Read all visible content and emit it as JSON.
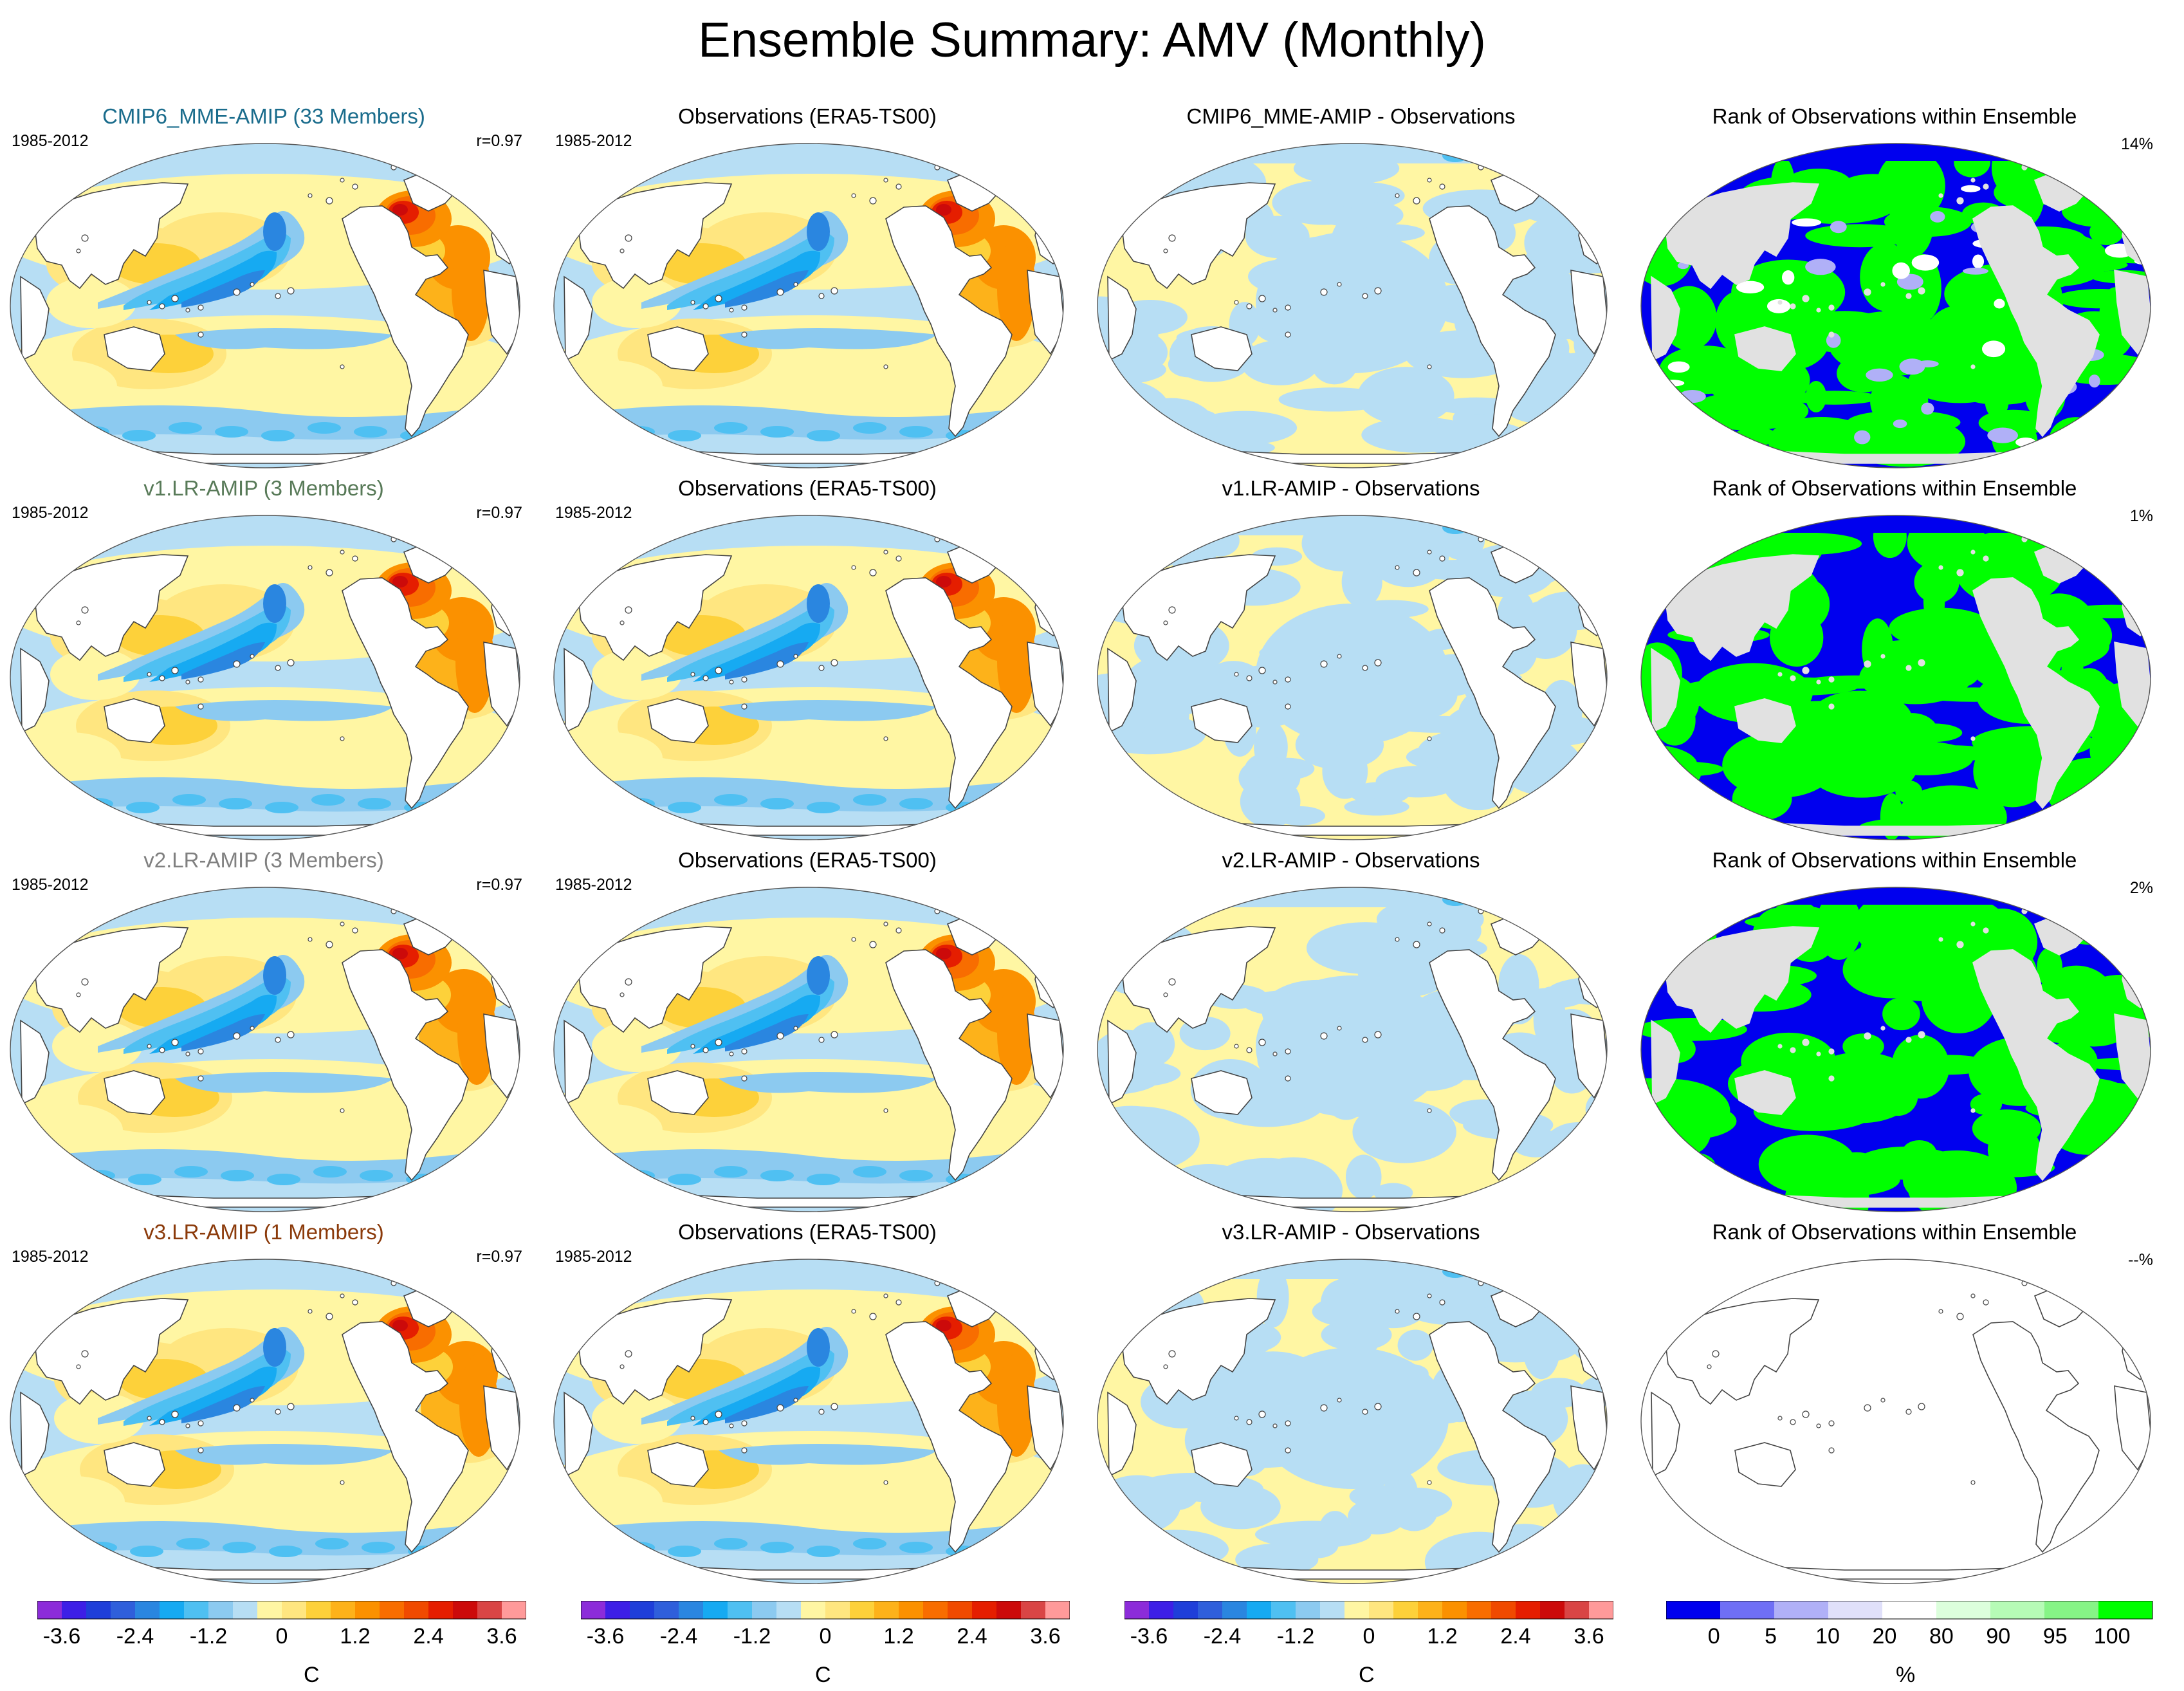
{
  "title": "Ensemble Summary: AMV (Monthly)",
  "colors": {
    "model_title": [
      "#1a6c8c",
      "#587a58",
      "#808080",
      "#8b3a0a"
    ],
    "sst_palette": [
      "#8c2cd9",
      "#3d1fe6",
      "#1f3fd9",
      "#2f5fdb",
      "#2a86e0",
      "#16aaf2",
      "#4fc0f2",
      "#8ccaf0",
      "#b7def4",
      "#fff6a3",
      "#ffe680",
      "#fdd13a",
      "#fdb21a",
      "#fb9100",
      "#f86d00",
      "#f04a00",
      "#e51e00",
      "#cc0a0a",
      "#d94545",
      "#ff9a9a"
    ],
    "rank_palette": [
      "#0000ee",
      "#6f6ff5",
      "#b0b0f7",
      "#e0e0fa",
      "#ffffff",
      "#dcffdc",
      "#b6fbb6",
      "#86f486",
      "#00ff00"
    ]
  },
  "rows": [
    {
      "model": "CMIP6_MME-AMIP (33 Members)",
      "period": "1985-2012",
      "corr": "r=0.97",
      "obs": "Observations (ERA5-TS00)",
      "diff": "CMIP6_MME-AMIP - Observations",
      "rank": "Rank of Observations within Ensemble",
      "rank_pct": "14%"
    },
    {
      "model": "v1.LR-AMIP (3 Members)",
      "period": "1985-2012",
      "corr": "r=0.97",
      "obs": "Observations (ERA5-TS00)",
      "diff": "v1.LR-AMIP - Observations",
      "rank": "Rank of Observations within Ensemble",
      "rank_pct": "1%"
    },
    {
      "model": "v2.LR-AMIP (3 Members)",
      "period": "1985-2012",
      "corr": "r=0.97",
      "obs": "Observations (ERA5-TS00)",
      "diff": "v2.LR-AMIP - Observations",
      "rank": "Rank of Observations within Ensemble",
      "rank_pct": "2%"
    },
    {
      "model": "v3.LR-AMIP (1 Members)",
      "period": "1985-2012",
      "corr": "r=0.97",
      "obs": "Observations (ERA5-TS00)",
      "diff": "v3.LR-AMIP - Observations",
      "rank": "Rank of Observations within Ensemble",
      "rank_pct": "--%"
    }
  ],
  "colorbar_sst": {
    "labels": [
      "-3.6",
      "-2.4",
      "-1.2",
      "0",
      "1.2",
      "2.4",
      "3.6"
    ],
    "unit": "C"
  },
  "colorbar_rank": {
    "labels": [
      "0",
      "5",
      "10",
      "20",
      "80",
      "90",
      "95",
      "100"
    ],
    "unit": "%"
  },
  "chart_data": [
    {
      "type": "heatmap",
      "title": "Ensemble Summary: AMV (Monthly)",
      "projection": "Robinson (Pacific-centred)",
      "units": "C",
      "color_range": [
        -3.6,
        3.6
      ],
      "levels_per_tick": 1.2,
      "panels": [
        {
          "row": 1,
          "column": "model",
          "title": "CMIP6_MME-AMIP (33 Members)",
          "period": "1985-2012",
          "pattern_correlation": 0.97
        },
        {
          "row": 1,
          "column": "observations",
          "title": "Observations (ERA5-TS00)",
          "period": "1985-2012"
        },
        {
          "row": 1,
          "column": "difference",
          "title": "CMIP6_MME-AMIP - Observations"
        },
        {
          "row": 2,
          "column": "model",
          "title": "v1.LR-AMIP (3 Members)",
          "period": "1985-2012",
          "pattern_correlation": 0.97
        },
        {
          "row": 2,
          "column": "observations",
          "title": "Observations (ERA5-TS00)",
          "period": "1985-2012"
        },
        {
          "row": 2,
          "column": "difference",
          "title": "v1.LR-AMIP - Observations"
        },
        {
          "row": 3,
          "column": "model",
          "title": "v2.LR-AMIP (3 Members)",
          "period": "1985-2012",
          "pattern_correlation": 0.97
        },
        {
          "row": 3,
          "column": "observations",
          "title": "Observations (ERA5-TS00)",
          "period": "1985-2012"
        },
        {
          "row": 3,
          "column": "difference",
          "title": "v2.LR-AMIP - Observations"
        },
        {
          "row": 4,
          "column": "model",
          "title": "v3.LR-AMIP (1 Members)",
          "period": "1985-2012",
          "pattern_correlation": 0.97
        },
        {
          "row": 4,
          "column": "observations",
          "title": "Observations (ERA5-TS00)",
          "period": "1985-2012"
        },
        {
          "row": 4,
          "column": "difference",
          "title": "v3.LR-AMIP - Observations"
        }
      ]
    },
    {
      "type": "heatmap",
      "title": "Rank of Observations within Ensemble",
      "units": "%",
      "color_levels": [
        0,
        5,
        10,
        20,
        80,
        90,
        95,
        100
      ],
      "panels": [
        {
          "row": 1,
          "fraction_outside_ensemble": "14%"
        },
        {
          "row": 2,
          "fraction_outside_ensemble": "1%"
        },
        {
          "row": 3,
          "fraction_outside_ensemble": "2%"
        },
        {
          "row": 4,
          "fraction_outside_ensemble": "--%"
        }
      ]
    }
  ]
}
